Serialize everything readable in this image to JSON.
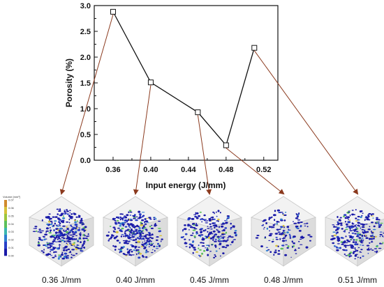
{
  "chart_data": {
    "type": "line",
    "xlabel": "Input energy (J/mm)",
    "ylabel": "Porosity (%)",
    "xticks": [
      "0.36",
      "0.40",
      "0.44",
      "0.48",
      "0.52"
    ],
    "yticks": [
      "0.0",
      "0.5",
      "1.0",
      "1.5",
      "2.0",
      "2.5",
      "3.0"
    ],
    "xlim": [
      0.34,
      0.535
    ],
    "ylim": [
      0.0,
      3.0
    ],
    "x": [
      0.36,
      0.4,
      0.45,
      0.48,
      0.51
    ],
    "y": [
      2.88,
      1.51,
      0.93,
      0.29,
      2.18
    ],
    "marker": "open-square",
    "line_color": "#111111",
    "arrow_color": "#8B3A1E"
  },
  "panels": [
    {
      "caption": "0.36 J/mm",
      "density": 0.9
    },
    {
      "caption": "0.40 J/mm",
      "density": 0.8
    },
    {
      "caption": "0.45 J/mm",
      "density": 0.55
    },
    {
      "caption": "0.48 J/mm",
      "density": 0.35
    },
    {
      "caption": "0.51 J/mm",
      "density": 0.7
    }
  ],
  "colorbar": {
    "title": "Volume [mm³]",
    "labels": [
      "0.00",
      "0.01",
      "0.02",
      "0.03",
      "0.04",
      "0.05",
      "0.06",
      "0.07"
    ],
    "colors": [
      "#1a1aa8",
      "#2840c8",
      "#2f7fd0",
      "#3cb6b0",
      "#5bbf5a",
      "#9cc53c",
      "#d6c23a",
      "#d08a2c"
    ]
  }
}
